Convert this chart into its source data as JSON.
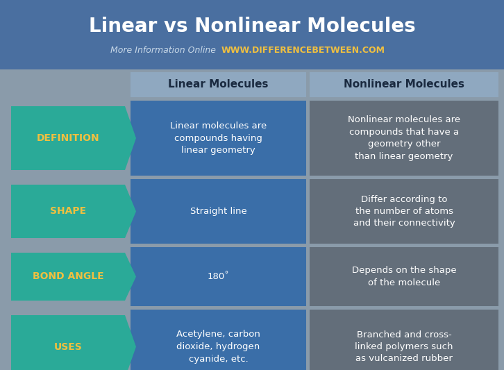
{
  "title": "Linear vs Nonlinear Molecules",
  "subtitle_gray": "More Information Online",
  "subtitle_yellow": "WWW.DIFFERENCEBETWEEN.COM",
  "header_col1": "Linear Molecules",
  "header_col2": "Nonlinear Molecules",
  "rows": [
    {
      "label": "DEFINITION",
      "col1": "Linear molecules are\ncompounds having\nlinear geometry",
      "col2": "Nonlinear molecules are\ncompounds that have a\ngeometry other\nthan linear geometry"
    },
    {
      "label": "SHAPE",
      "col1": "Straight line",
      "col2": "Differ according to\nthe number of atoms\nand their connectivity"
    },
    {
      "label": "BOND ANGLE",
      "col1": "180˚",
      "col2": "Depends on the shape\nof the molecule"
    },
    {
      "label": "USES",
      "col1": "Acetylene, carbon\ndioxide, hydrogen\ncyanide, etc.",
      "col2": "Branched and cross-\nlinked polymers such\nas vulcanized rubber"
    }
  ],
  "bg_color": "#8a9baa",
  "title_bg": "#4a6fa0",
  "header_bg": "#8fa8c0",
  "col1_bg": "#3a6ea8",
  "col2_bg": "#636e7a",
  "arrow_color": "#2aaa98",
  "title_color": "#ffffff",
  "subtitle_gray_color": "#c8d8e8",
  "subtitle_yellow_color": "#f0c040",
  "label_color": "#f0c040",
  "header_text_color": "#1a2a40",
  "col1_text_color": "#ffffff",
  "col2_text_color": "#ffffff",
  "title_fontsize": 20,
  "subtitle_fontsize": 9,
  "header_fontsize": 11,
  "cell_fontsize": 9.5,
  "label_fontsize": 10,
  "fig_w": 7.26,
  "fig_h": 5.33,
  "dpi": 100
}
